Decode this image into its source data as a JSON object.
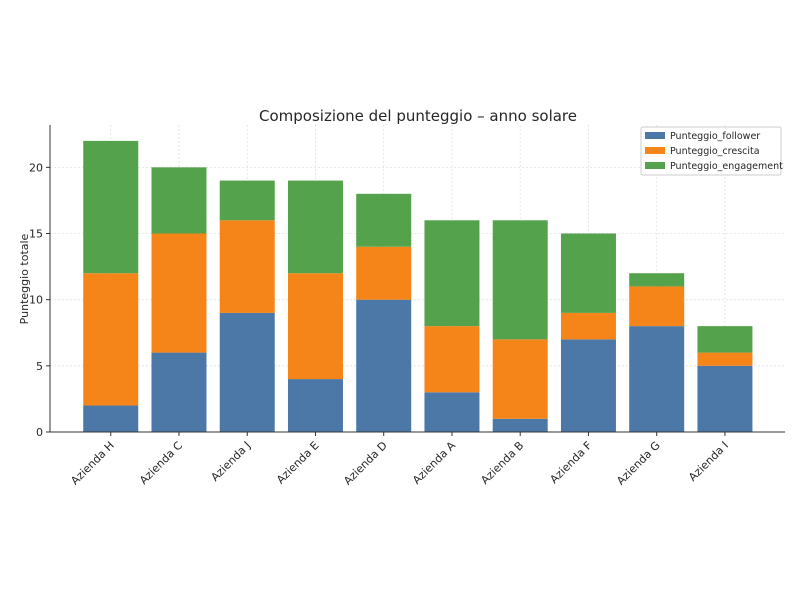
{
  "chart_data": {
    "type": "bar",
    "stacked": true,
    "title": "Composizione del punteggio – anno solare",
    "xlabel": "",
    "ylabel": "Punteggio totale",
    "categories": [
      "Azienda H",
      "Azienda C",
      "Azienda J",
      "Azienda E",
      "Azienda D",
      "Azienda A",
      "Azienda B",
      "Azienda F",
      "Azienda G",
      "Azienda I"
    ],
    "series": [
      {
        "name": "Punteggio_follower",
        "color": "#4c78a8",
        "values": [
          2,
          6,
          9,
          4,
          10,
          3,
          1,
          7,
          8,
          5
        ]
      },
      {
        "name": "Punteggio_crescita",
        "color": "#f58518",
        "values": [
          10,
          9,
          7,
          8,
          4,
          5,
          6,
          2,
          3,
          1
        ]
      },
      {
        "name": "Punteggio_engagement",
        "color": "#54a24b",
        "values": [
          10,
          5,
          3,
          7,
          4,
          8,
          9,
          6,
          1,
          2
        ]
      }
    ],
    "ylim": [
      0,
      23.2
    ],
    "yticks": [
      0,
      5,
      10,
      15,
      20
    ],
    "grid": true,
    "legend_position": "top-right"
  }
}
